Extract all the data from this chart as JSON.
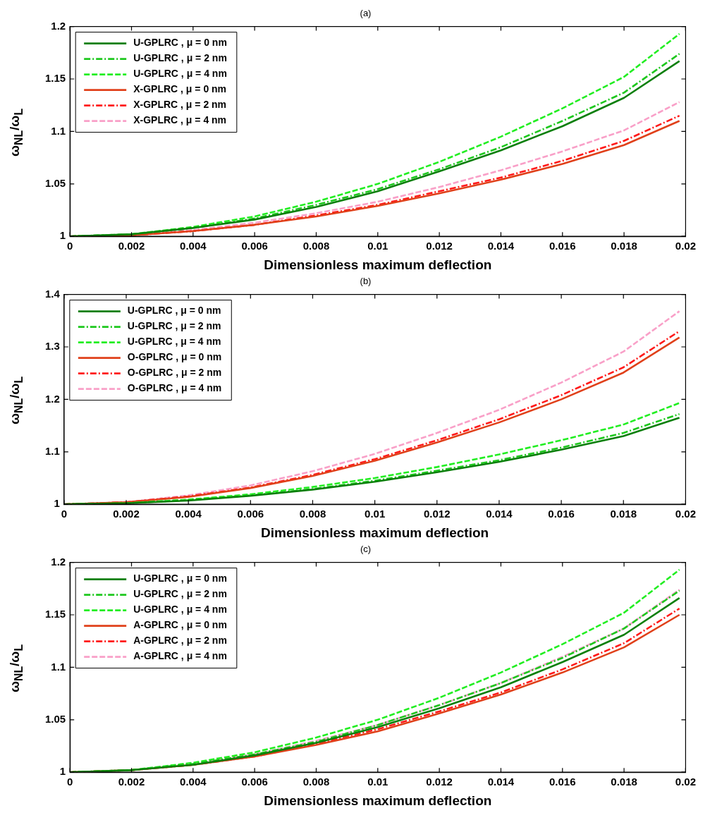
{
  "chart_data": [
    {
      "type": "line",
      "title": "(a)",
      "xlabel": "Dimensionless maximum deflection",
      "ylabel": "ω$_{NL}$/ω$_{L}$",
      "x": [
        0,
        0.002,
        0.004,
        0.006,
        0.008,
        0.01,
        0.012,
        0.014,
        0.016,
        0.018,
        0.0198
      ],
      "xlim": [
        0,
        0.02
      ],
      "xticks": [
        0,
        0.002,
        0.004,
        0.006,
        0.008,
        0.01,
        0.012,
        0.014,
        0.016,
        0.018,
        0.02
      ],
      "ylim": [
        1,
        1.2
      ],
      "yticks": [
        1,
        1.05,
        1.1,
        1.15,
        1.2
      ],
      "grid": false,
      "legend": "top left",
      "marker": "none",
      "series": [
        {
          "name": "U-GPLRC , μ = 0 nm",
          "color": "#0a7f0a",
          "line_style": "solid",
          "values": [
            1,
            1.002,
            1.008,
            1.016,
            1.028,
            1.043,
            1.062,
            1.082,
            1.105,
            1.132,
            1.167
          ]
        },
        {
          "name": "U-GPLRC , μ = 2 nm",
          "color": "#1ec81e",
          "line_style": "dashdot",
          "values": [
            1,
            1.002,
            1.008,
            1.017,
            1.03,
            1.045,
            1.064,
            1.085,
            1.11,
            1.137,
            1.174
          ]
        },
        {
          "name": "U-GPLRC , μ = 4 nm",
          "color": "#22ee22",
          "line_style": "dashed",
          "values": [
            1,
            1.002,
            1.009,
            1.019,
            1.033,
            1.05,
            1.071,
            1.095,
            1.122,
            1.152,
            1.193
          ]
        },
        {
          "name": "X-GPLRC , μ = 0 nm",
          "color": "#e0401a",
          "line_style": "solid",
          "values": [
            1,
            1.001,
            1.005,
            1.011,
            1.019,
            1.029,
            1.041,
            1.054,
            1.069,
            1.087,
            1.11
          ]
        },
        {
          "name": "X-GPLRC , μ = 2 nm",
          "color": "#ff1a1a",
          "line_style": "dashdot",
          "values": [
            1,
            1.001,
            1.005,
            1.011,
            1.02,
            1.03,
            1.043,
            1.056,
            1.072,
            1.091,
            1.115
          ]
        },
        {
          "name": "X-GPLRC , μ = 4 nm",
          "color": "#f9a0c8",
          "line_style": "dashed",
          "values": [
            1,
            1.002,
            1.006,
            1.013,
            1.022,
            1.033,
            1.047,
            1.063,
            1.081,
            1.101,
            1.128
          ]
        }
      ]
    },
    {
      "type": "line",
      "title": "(b)",
      "xlabel": "Dimensionless maximum deflection",
      "ylabel": "ω$_{NL}$/ω$_{L}$",
      "x": [
        0,
        0.002,
        0.004,
        0.006,
        0.008,
        0.01,
        0.012,
        0.014,
        0.016,
        0.018,
        0.0198
      ],
      "xlim": [
        0,
        0.02
      ],
      "xticks": [
        0,
        0.002,
        0.004,
        0.006,
        0.008,
        0.01,
        0.012,
        0.014,
        0.016,
        0.018,
        0.02
      ],
      "ylim": [
        1,
        1.4
      ],
      "yticks": [
        1,
        1.1,
        1.2,
        1.3,
        1.4
      ],
      "grid": false,
      "legend": "top left",
      "marker": "none",
      "series": [
        {
          "name": "U-GPLRC , μ = 0 nm",
          "color": "#0a7f0a",
          "line_style": "solid",
          "values": [
            1,
            1.002,
            1.007,
            1.016,
            1.028,
            1.043,
            1.061,
            1.081,
            1.104,
            1.13,
            1.165
          ]
        },
        {
          "name": "U-GPLRC , μ = 2 nm",
          "color": "#1ec81e",
          "line_style": "dashdot",
          "values": [
            1,
            1.002,
            1.008,
            1.017,
            1.029,
            1.045,
            1.064,
            1.084,
            1.108,
            1.136,
            1.172
          ]
        },
        {
          "name": "U-GPLRC , μ = 4 nm",
          "color": "#22ee22",
          "line_style": "dashed",
          "values": [
            1,
            1.002,
            1.009,
            1.019,
            1.033,
            1.05,
            1.071,
            1.095,
            1.122,
            1.152,
            1.193
          ]
        },
        {
          "name": "O-GPLRC , μ = 0 nm",
          "color": "#e0401a",
          "line_style": "solid",
          "values": [
            1,
            1.004,
            1.014,
            1.031,
            1.054,
            1.083,
            1.118,
            1.156,
            1.2,
            1.251,
            1.318
          ]
        },
        {
          "name": "O-GPLRC , μ = 2 nm",
          "color": "#ff1a1a",
          "line_style": "dashdot",
          "values": [
            1,
            1.004,
            1.015,
            1.032,
            1.056,
            1.086,
            1.122,
            1.162,
            1.208,
            1.261,
            1.33
          ]
        },
        {
          "name": "O-GPLRC , μ = 4 nm",
          "color": "#f9a0c8",
          "line_style": "dashed",
          "values": [
            1,
            1.004,
            1.017,
            1.036,
            1.063,
            1.096,
            1.136,
            1.18,
            1.232,
            1.291,
            1.368
          ]
        }
      ]
    },
    {
      "type": "line",
      "title": "(c)",
      "xlabel": "Dimensionless maximum deflection",
      "ylabel": "ω$_{NL}$/ω$_{L}$",
      "x": [
        0,
        0.002,
        0.004,
        0.006,
        0.008,
        0.01,
        0.012,
        0.014,
        0.016,
        0.018,
        0.0198
      ],
      "xlim": [
        0,
        0.02
      ],
      "xticks": [
        0,
        0.002,
        0.004,
        0.006,
        0.008,
        0.01,
        0.012,
        0.014,
        0.016,
        0.018,
        0.02
      ],
      "ylim": [
        1,
        1.2
      ],
      "yticks": [
        1,
        1.05,
        1.1,
        1.15,
        1.2
      ],
      "grid": false,
      "legend": "top left",
      "marker": "none",
      "series": [
        {
          "name": "U-GPLRC , μ = 0 nm",
          "color": "#0a7f0a",
          "line_style": "solid",
          "values": [
            1,
            1.002,
            1.007,
            1.016,
            1.028,
            1.043,
            1.061,
            1.081,
            1.105,
            1.131,
            1.166
          ]
        },
        {
          "name": "U-GPLRC , μ = 2 nm",
          "color": "#1ec81e",
          "line_style": "dashdot",
          "values": [
            1,
            1.002,
            1.008,
            1.017,
            1.029,
            1.045,
            1.064,
            1.085,
            1.109,
            1.137,
            1.173
          ]
        },
        {
          "name": "U-GPLRC , μ = 4 nm",
          "color": "#22ee22",
          "line_style": "dashed",
          "values": [
            1,
            1.002,
            1.009,
            1.019,
            1.033,
            1.05,
            1.071,
            1.095,
            1.122,
            1.152,
            1.193
          ]
        },
        {
          "name": "A-GPLRC , μ = 0 nm",
          "color": "#e0401a",
          "line_style": "solid",
          "values": [
            1,
            1.002,
            1.007,
            1.015,
            1.026,
            1.039,
            1.056,
            1.074,
            1.095,
            1.119,
            1.15
          ]
        },
        {
          "name": "A-GPLRC , μ = 2 nm",
          "color": "#ff1a1a",
          "line_style": "dashdot",
          "values": [
            1,
            1.002,
            1.007,
            1.015,
            1.027,
            1.041,
            1.058,
            1.076,
            1.098,
            1.123,
            1.156
          ]
        },
        {
          "name": "A-GPLRC , μ = 4 nm",
          "color": "#f9a0c8",
          "line_style": "dashed",
          "values": [
            1,
            1.002,
            1.008,
            1.017,
            1.03,
            1.045,
            1.064,
            1.085,
            1.11,
            1.137,
            1.174
          ]
        }
      ]
    }
  ]
}
